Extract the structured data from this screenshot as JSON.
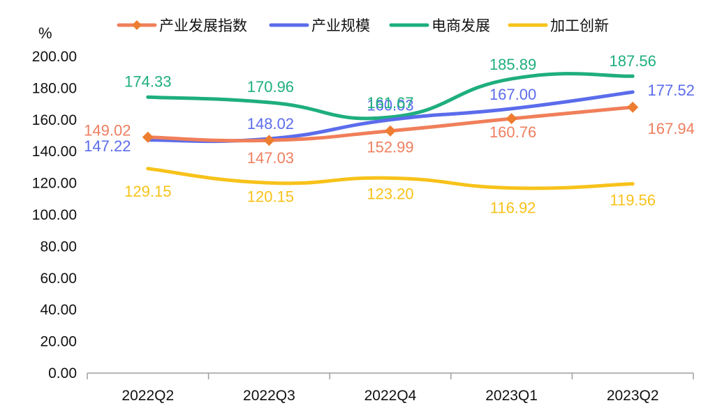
{
  "chart_data": {
    "type": "line",
    "title": "",
    "xlabel": "",
    "ylabel": "%",
    "ylim": [
      0,
      200
    ],
    "yticks": [
      "0.00",
      "20.00",
      "40.00",
      "60.00",
      "80.00",
      "100.00",
      "120.00",
      "140.00",
      "160.00",
      "180.00",
      "200.00"
    ],
    "categories": [
      "2022Q2",
      "2022Q3",
      "2022Q4",
      "2023Q1",
      "2023Q2"
    ],
    "grid": false,
    "legend_position": "top",
    "series": [
      {
        "name": "产业发展指数",
        "values": [
          149.02,
          147.03,
          152.99,
          160.76,
          167.94
        ],
        "labels": [
          "149.02",
          "147.03",
          "152.99",
          "160.76",
          "167.94"
        ],
        "color": "#F07F5A",
        "marker_color": "#ED7D31",
        "marker": "diamond"
      },
      {
        "name": "产业规模",
        "values": [
          147.22,
          148.02,
          160.03,
          167.0,
          177.52
        ],
        "labels": [
          "147.22",
          "148.02",
          "160.03",
          "167.00",
          "177.52"
        ],
        "color": "#5B6CEB",
        "marker": "none"
      },
      {
        "name": "电商发展",
        "values": [
          174.33,
          170.96,
          161.67,
          185.89,
          187.56
        ],
        "labels": [
          "174.33",
          "170.96",
          "161.67",
          "185.89",
          "187.56"
        ],
        "color": "#1EAE7E",
        "marker": "none"
      },
      {
        "name": "加工创新",
        "values": [
          129.15,
          120.15,
          123.2,
          116.92,
          119.56
        ],
        "labels": [
          "129.15",
          "120.15",
          "123.20",
          "116.92",
          "119.56"
        ],
        "color": "#F7C21A",
        "marker": "none"
      }
    ]
  }
}
